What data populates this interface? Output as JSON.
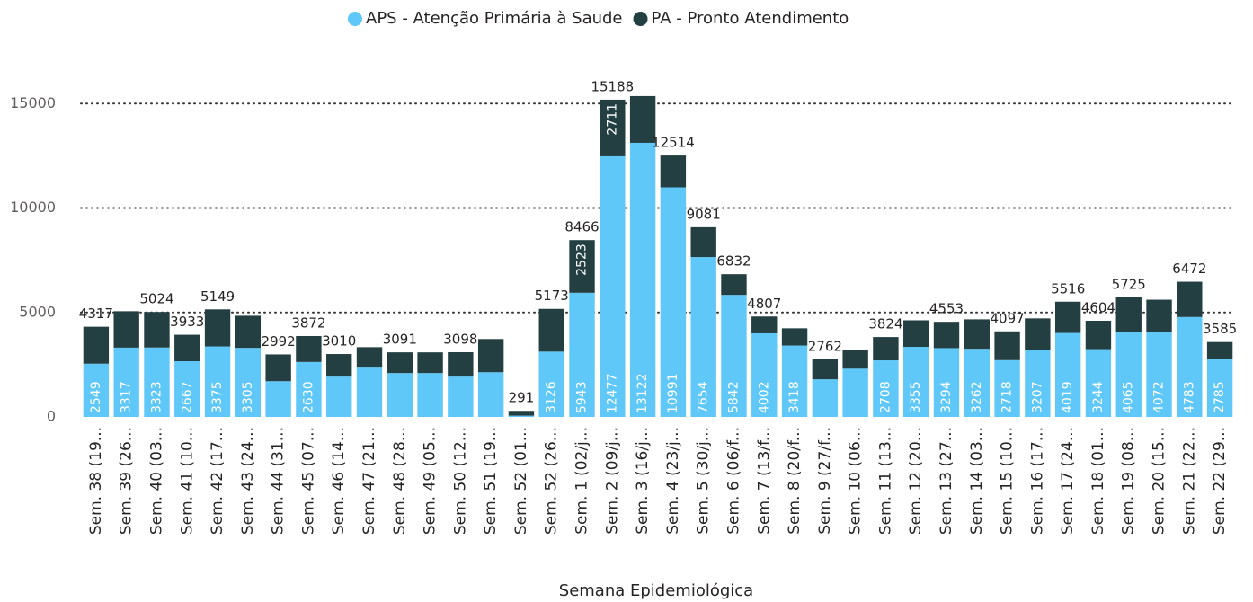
{
  "chart_data": {
    "type": "stacked-bar",
    "x_label": "Semana Epidemiológica",
    "categories": [
      "Sem. 38 (19...",
      "Sem. 39 (26...",
      "Sem. 40 (03...",
      "Sem. 41 (10...",
      "Sem. 42 (17...",
      "Sem. 43 (24...",
      "Sem. 44 (31...",
      "Sem. 45 (07...",
      "Sem. 46 (14...",
      "Sem. 47 (21...",
      "Sem. 48 (28...",
      "Sem. 49 (05...",
      "Sem. 50 (12...",
      "Sem. 51 (19...",
      "Sem. 52 (01...",
      "Sem. 52 (26...",
      "Sem. 1 (02/j...",
      "Sem. 2 (09/j...",
      "Sem. 3 (16/j...",
      "Sem. 4 (23/j...",
      "Sem. 5 (30/j...",
      "Sem. 6 (06/f...",
      "Sem. 7 (13/f...",
      "Sem. 8 (20/f...",
      "Sem. 9 (27/f...",
      "Sem. 10 (06...",
      "Sem. 11 (13...",
      "Sem. 12 (20...",
      "Sem. 13 (27...",
      "Sem. 14 (03...",
      "Sem. 15 (10...",
      "Sem. 16 (17...",
      "Sem. 17 (24...",
      "Sem. 18 (01...",
      "Sem. 19 (08...",
      "Sem. 20 (15...",
      "Sem. 21 (22...",
      "Sem. 22 (29..."
    ],
    "series": [
      {
        "name": "APS - Atenção Primária à Saude",
        "color": "#5fc8f8",
        "values": [
          2549,
          3317,
          3323,
          2667,
          3375,
          3305,
          1710,
          2630,
          1930,
          2360,
          2100,
          2100,
          1930,
          2140,
          60,
          3126,
          5943,
          12477,
          13122,
          10991,
          7654,
          5842,
          4002,
          3418,
          1800,
          2310,
          2708,
          3355,
          3294,
          3262,
          2718,
          3207,
          4019,
          3244,
          4065,
          4072,
          4783,
          2785
        ],
        "value_labels": [
          "2549",
          "3317",
          "3323",
          "2667",
          "3375",
          "3305",
          null,
          "2630",
          null,
          null,
          null,
          null,
          null,
          null,
          null,
          "3126",
          "5943",
          "12477",
          "13122",
          "10991",
          "7654",
          "5842",
          "4002",
          "3418",
          null,
          null,
          "2708",
          "3355",
          "3294",
          "3262",
          "2718",
          "3207",
          "4019",
          "3244",
          "4065",
          "4072",
          "4783",
          "2785"
        ]
      },
      {
        "name": "PA - Pronto Atendimento",
        "color": "#233f42",
        "values": [
          1768,
          1743,
          1701,
          1266,
          1774,
          1538,
          1282,
          1242,
          1080,
          980,
          991,
          990,
          1168,
          1590,
          231,
          2047,
          2523,
          2711,
          2238,
          1523,
          1427,
          990,
          805,
          825,
          962,
          900,
          1116,
          1270,
          1259,
          1410,
          1379,
          1510,
          1497,
          1360,
          1660,
          1540,
          1689,
          800
        ],
        "value_labels": [
          null,
          null,
          null,
          null,
          null,
          null,
          null,
          null,
          null,
          null,
          null,
          null,
          null,
          null,
          null,
          null,
          "2523",
          "2711",
          null,
          null,
          null,
          null,
          null,
          null,
          null,
          null,
          null,
          null,
          null,
          null,
          null,
          null,
          null,
          null,
          null,
          null,
          null,
          null
        ]
      }
    ],
    "totals": [
      4317,
      null,
      5024,
      3933,
      5149,
      null,
      2992,
      3872,
      3010,
      null,
      3091,
      null,
      3098,
      null,
      291,
      5173,
      8466,
      15188,
      null,
      12514,
      9081,
      6832,
      4807,
      null,
      2762,
      null,
      3824,
      null,
      4553,
      null,
      4097,
      null,
      5516,
      4604,
      5725,
      null,
      6472,
      3585
    ],
    "ylim": [
      0,
      15400
    ],
    "yticks": [
      0,
      5000,
      10000,
      15000
    ],
    "grid": true,
    "legend": "top"
  }
}
